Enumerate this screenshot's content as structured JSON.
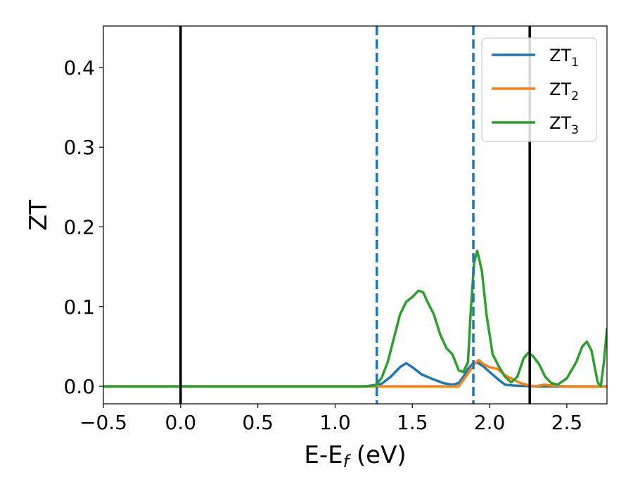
{
  "chart_data": {
    "type": "line",
    "xlabel": "E-E",
    "xlabel_sub": "f",
    "xlabel_suffix": " (eV)",
    "ylabel": "ZT",
    "xlim": [
      -0.5,
      2.76
    ],
    "ylim": [
      -0.022,
      0.452
    ],
    "x_ticks": [
      -0.5,
      0.0,
      0.5,
      1.0,
      1.5,
      2.0,
      2.5
    ],
    "x_tick_labels": [
      "−0.5",
      "0.0",
      "0.5",
      "1.0",
      "1.5",
      "2.0",
      "2.5"
    ],
    "y_ticks": [
      0.0,
      0.1,
      0.2,
      0.3,
      0.4
    ],
    "y_tick_labels": [
      "0.0",
      "0.1",
      "0.2",
      "0.3",
      "0.4"
    ],
    "grid": false,
    "legend_position": "top-right",
    "vertical_lines": [
      {
        "x": 0.0,
        "style": "solid",
        "color": "#000000"
      },
      {
        "x": 2.26,
        "style": "solid",
        "color": "#000000"
      },
      {
        "x": 1.27,
        "style": "dashed",
        "color": "#1f77b4"
      },
      {
        "x": 1.895,
        "style": "dashed",
        "color": "#1f77b4"
      }
    ],
    "series": [
      {
        "name": "ZT",
        "sub": "1",
        "color": "#1f77b4",
        "x": [
          -0.5,
          1.2,
          1.3,
          1.36,
          1.42,
          1.46,
          1.5,
          1.56,
          1.62,
          1.7,
          1.76,
          1.8,
          1.83,
          1.86,
          1.89,
          1.92,
          1.96,
          2.0,
          2.06,
          2.1,
          2.15,
          2.2,
          2.3,
          2.4,
          2.6,
          2.76
        ],
        "y": [
          0.0,
          0.0,
          0.003,
          0.012,
          0.024,
          0.029,
          0.024,
          0.015,
          0.01,
          0.004,
          0.002,
          0.004,
          0.012,
          0.022,
          0.028,
          0.03,
          0.025,
          0.018,
          0.008,
          0.002,
          0.001,
          0.0005,
          0.0,
          0.0,
          0.0,
          0.0
        ]
      },
      {
        "name": "ZT",
        "sub": "2",
        "color": "#ff7f0e",
        "x": [
          -0.5,
          1.2,
          1.25,
          1.3,
          1.5,
          1.7,
          1.8,
          1.86,
          1.9,
          1.93,
          1.96,
          2.0,
          2.05,
          2.1,
          2.16,
          2.2,
          2.26,
          2.3,
          2.35,
          2.4,
          2.5,
          2.6,
          2.76
        ],
        "y": [
          0.0,
          0.0,
          0.0,
          0.0,
          0.0,
          0.0,
          0.0,
          0.016,
          0.028,
          0.033,
          0.028,
          0.024,
          0.022,
          0.014,
          0.008,
          0.004,
          0.001,
          0.0,
          0.002,
          0.001,
          0.0,
          0.0,
          0.0
        ]
      },
      {
        "name": "ZT",
        "sub": "3",
        "color": "#2ca02c",
        "x": [
          -0.5,
          1.2,
          1.26,
          1.3,
          1.34,
          1.38,
          1.42,
          1.46,
          1.5,
          1.54,
          1.57,
          1.6,
          1.64,
          1.68,
          1.72,
          1.76,
          1.8,
          1.83,
          1.86,
          1.88,
          1.9,
          1.92,
          1.95,
          1.98,
          2.02,
          2.06,
          2.1,
          2.14,
          2.18,
          2.22,
          2.25,
          2.28,
          2.32,
          2.36,
          2.4,
          2.44,
          2.5,
          2.56,
          2.6,
          2.63,
          2.66,
          2.7,
          2.72,
          2.74,
          2.76
        ],
        "y": [
          0.0,
          0.0,
          0.001,
          0.01,
          0.03,
          0.06,
          0.09,
          0.106,
          0.112,
          0.12,
          0.118,
          0.105,
          0.09,
          0.065,
          0.048,
          0.04,
          0.02,
          0.018,
          0.03,
          0.1,
          0.155,
          0.17,
          0.145,
          0.09,
          0.04,
          0.025,
          0.012,
          0.005,
          0.012,
          0.035,
          0.042,
          0.038,
          0.028,
          0.012,
          0.004,
          0.002,
          0.01,
          0.03,
          0.05,
          0.056,
          0.045,
          0.005,
          0.0,
          0.03,
          0.072
        ]
      }
    ]
  }
}
